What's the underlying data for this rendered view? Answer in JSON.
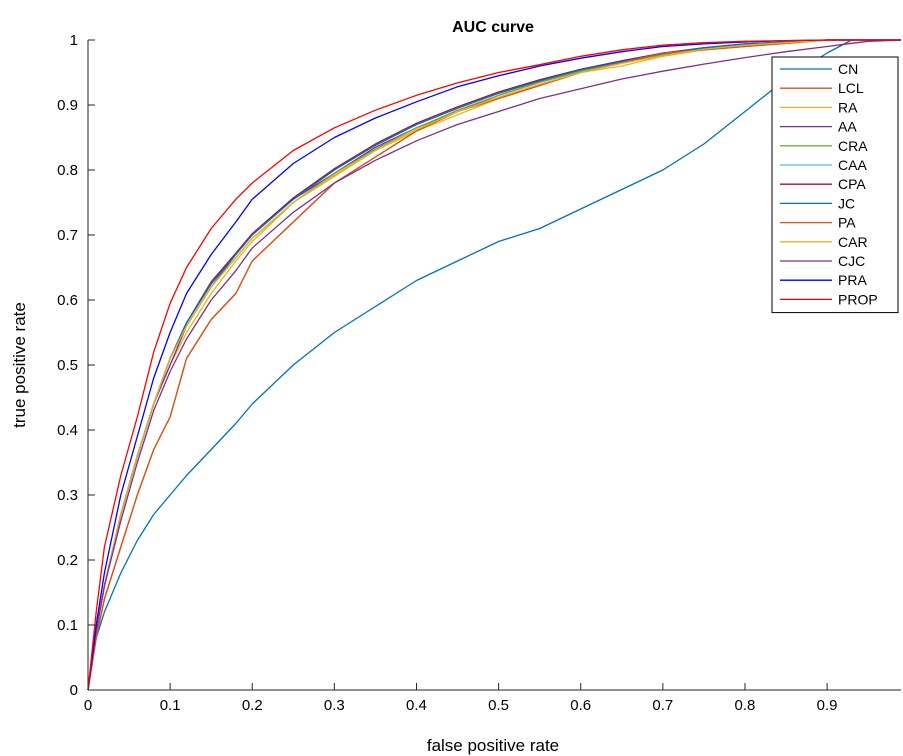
{
  "chart_data": {
    "type": "line",
    "title": "AUC curve",
    "xlabel": "false positive rate",
    "ylabel": "true positive rate",
    "xlim": [
      0,
      0.99
    ],
    "ylim": [
      0,
      1
    ],
    "xticks": [
      "0",
      "0.1",
      "0.2",
      "0.3",
      "0.4",
      "0.5",
      "0.6",
      "0.7",
      "0.8",
      "0.9"
    ],
    "yticks": [
      "0",
      "0.1",
      "0.2",
      "0.3",
      "0.4",
      "0.5",
      "0.6",
      "0.7",
      "0.8",
      "0.9",
      "1"
    ],
    "grid": false,
    "legend_position": "top-right",
    "x": [
      0,
      0.01,
      0.02,
      0.04,
      0.06,
      0.08,
      0.1,
      0.12,
      0.15,
      0.18,
      0.2,
      0.25,
      0.3,
      0.35,
      0.4,
      0.45,
      0.5,
      0.55,
      0.6,
      0.65,
      0.7,
      0.75,
      0.8,
      0.85,
      0.9,
      0.93,
      0.95,
      0.99
    ],
    "series": [
      {
        "name": "CN",
        "color": "#0072bd",
        "values": [
          0,
          0.08,
          0.12,
          0.18,
          0.23,
          0.27,
          0.3,
          0.33,
          0.37,
          0.41,
          0.44,
          0.5,
          0.55,
          0.59,
          0.63,
          0.66,
          0.69,
          0.71,
          0.74,
          0.77,
          0.8,
          0.84,
          0.89,
          0.94,
          0.98,
          1.0,
          1.0,
          1.0
        ]
      },
      {
        "name": "LCL",
        "color": "#d95319",
        "values": [
          0,
          0.08,
          0.14,
          0.22,
          0.3,
          0.37,
          0.42,
          0.51,
          0.57,
          0.61,
          0.66,
          0.72,
          0.78,
          0.82,
          0.86,
          0.89,
          0.91,
          0.93,
          0.95,
          0.965,
          0.98,
          0.985,
          0.99,
          0.995,
          1.0,
          1.0,
          1.0,
          1.0
        ]
      },
      {
        "name": "RA",
        "color": "#edb120",
        "values": [
          0,
          0.09,
          0.16,
          0.27,
          0.36,
          0.44,
          0.5,
          0.55,
          0.61,
          0.66,
          0.69,
          0.75,
          0.79,
          0.83,
          0.86,
          0.885,
          0.91,
          0.93,
          0.95,
          0.96,
          0.975,
          0.985,
          0.99,
          0.995,
          1.0,
          1.0,
          1.0,
          1.0
        ]
      },
      {
        "name": "AA",
        "color": "#7e2f8e",
        "values": [
          0,
          0.09,
          0.16,
          0.27,
          0.36,
          0.44,
          0.5,
          0.56,
          0.62,
          0.67,
          0.7,
          0.755,
          0.795,
          0.835,
          0.865,
          0.89,
          0.915,
          0.935,
          0.952,
          0.965,
          0.977,
          0.986,
          0.992,
          0.996,
          1.0,
          1.0,
          1.0,
          1.0
        ]
      },
      {
        "name": "CRA",
        "color": "#77ac30",
        "values": [
          0,
          0.09,
          0.16,
          0.27,
          0.36,
          0.44,
          0.51,
          0.56,
          0.62,
          0.665,
          0.695,
          0.75,
          0.795,
          0.832,
          0.865,
          0.892,
          0.915,
          0.935,
          0.952,
          0.966,
          0.978,
          0.987,
          0.993,
          0.997,
          1.0,
          1.0,
          1.0,
          1.0
        ]
      },
      {
        "name": "CAA",
        "color": "#4dbeee",
        "values": [
          0,
          0.09,
          0.16,
          0.27,
          0.36,
          0.44,
          0.51,
          0.565,
          0.625,
          0.67,
          0.7,
          0.755,
          0.8,
          0.838,
          0.87,
          0.895,
          0.918,
          0.937,
          0.954,
          0.967,
          0.979,
          0.988,
          0.994,
          0.997,
          1.0,
          1.0,
          1.0,
          1.0
        ]
      },
      {
        "name": "CPA",
        "color": "#a2142f",
        "values": [
          0,
          0.09,
          0.16,
          0.27,
          0.36,
          0.44,
          0.51,
          0.565,
          0.628,
          0.672,
          0.702,
          0.757,
          0.802,
          0.84,
          0.872,
          0.897,
          0.92,
          0.939,
          0.955,
          0.968,
          0.98,
          0.988,
          0.994,
          0.997,
          1.0,
          1.0,
          1.0,
          1.0
        ]
      },
      {
        "name": "JC",
        "color": "#0072bd",
        "values": [
          0,
          0.09,
          0.16,
          0.27,
          0.36,
          0.44,
          0.51,
          0.565,
          0.625,
          0.67,
          0.7,
          0.755,
          0.8,
          0.838,
          0.87,
          0.895,
          0.918,
          0.937,
          0.954,
          0.967,
          0.979,
          0.988,
          0.994,
          0.997,
          1.0,
          1.0,
          1.0,
          1.0
        ]
      },
      {
        "name": "PA",
        "color": "#d95319",
        "values": [
          0,
          0.08,
          0.14,
          0.22,
          0.3,
          0.37,
          0.42,
          0.51,
          0.57,
          0.61,
          0.66,
          0.72,
          0.78,
          0.82,
          0.86,
          0.89,
          0.91,
          0.93,
          0.95,
          0.965,
          0.98,
          0.985,
          0.99,
          0.995,
          1.0,
          1.0,
          1.0,
          1.0
        ]
      },
      {
        "name": "CAR",
        "color": "#edb120",
        "values": [
          0,
          0.09,
          0.16,
          0.27,
          0.36,
          0.44,
          0.51,
          0.56,
          0.62,
          0.665,
          0.695,
          0.75,
          0.792,
          0.83,
          0.862,
          0.89,
          0.912,
          0.932,
          0.95,
          0.964,
          0.976,
          0.986,
          0.992,
          0.996,
          1.0,
          1.0,
          1.0,
          1.0
        ]
      },
      {
        "name": "CJC",
        "color": "#7e2f8e",
        "values": [
          0,
          0.09,
          0.16,
          0.26,
          0.35,
          0.43,
          0.49,
          0.54,
          0.6,
          0.645,
          0.68,
          0.735,
          0.78,
          0.815,
          0.845,
          0.87,
          0.89,
          0.91,
          0.925,
          0.94,
          0.952,
          0.963,
          0.973,
          0.982,
          0.99,
          0.995,
          0.998,
          1.0
        ]
      },
      {
        "name": "PRA",
        "color": "#0000ff",
        "values": [
          0,
          0.1,
          0.18,
          0.3,
          0.39,
          0.48,
          0.55,
          0.61,
          0.67,
          0.72,
          0.755,
          0.81,
          0.85,
          0.88,
          0.905,
          0.928,
          0.945,
          0.96,
          0.972,
          0.982,
          0.99,
          0.994,
          0.997,
          0.999,
          1.0,
          1.0,
          1.0,
          1.0
        ]
      },
      {
        "name": "PROP",
        "color": "#ff0000",
        "values": [
          0,
          0.12,
          0.22,
          0.33,
          0.42,
          0.52,
          0.595,
          0.65,
          0.71,
          0.755,
          0.78,
          0.83,
          0.865,
          0.892,
          0.915,
          0.934,
          0.95,
          0.962,
          0.975,
          0.985,
          0.992,
          0.996,
          0.998,
          0.999,
          1.0,
          1.0,
          1.0,
          1.0
        ]
      }
    ]
  }
}
